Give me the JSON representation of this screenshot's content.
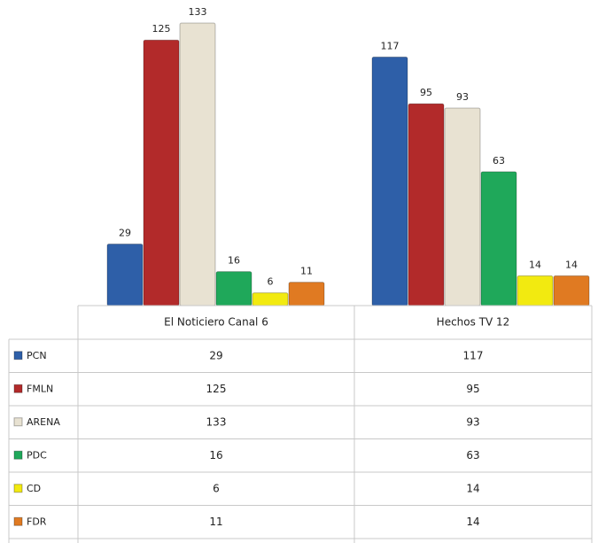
{
  "chart_data": {
    "type": "bar",
    "categories": [
      "El Noticiero Canal 6",
      "Hechos TV 12"
    ],
    "series": [
      {
        "name": "PCN",
        "color": "#2e5fa8",
        "values": [
          29,
          117
        ]
      },
      {
        "name": "FMLN",
        "color": "#b22a2a",
        "values": [
          125,
          95
        ]
      },
      {
        "name": "ARENA",
        "color": "#e8e2d2",
        "values": [
          133,
          93
        ]
      },
      {
        "name": "PDC",
        "color": "#1fa85a",
        "values": [
          16,
          63
        ]
      },
      {
        "name": "CD",
        "color": "#f2ea10",
        "values": [
          6,
          14
        ]
      },
      {
        "name": "FDR",
        "color": "#e07a22",
        "values": [
          11,
          14
        ]
      }
    ]
  }
}
